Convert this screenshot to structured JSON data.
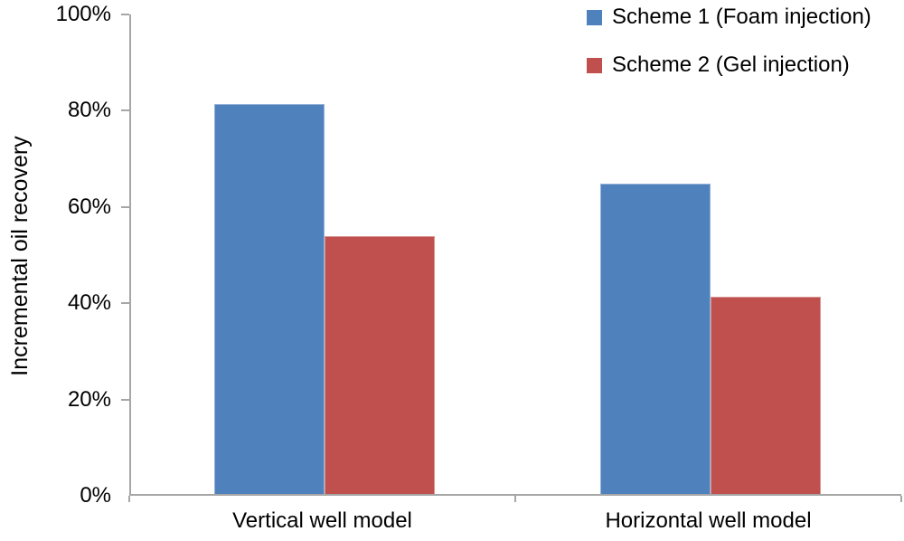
{
  "chart_data": {
    "type": "bar",
    "title": "",
    "xlabel": "",
    "ylabel": "Incremental oil recovery",
    "categories": [
      "Vertical well model",
      "Horizontal well model"
    ],
    "series": [
      {
        "name": "Scheme 1 (Foam injection)",
        "color": "#4f81bd",
        "border_color": "#95b3d7",
        "values": [
          81,
          64.5
        ]
      },
      {
        "name": "Scheme 2 (Gel injection)",
        "color": "#c0504d",
        "border_color": "#d99694",
        "values": [
          53.5,
          41
        ]
      }
    ],
    "ylim": [
      0,
      100
    ],
    "yticks": [
      0,
      20,
      40,
      60,
      80,
      100
    ],
    "ytick_labels": [
      "0%",
      "20%",
      "40%",
      "60%",
      "80%",
      "100%"
    ],
    "ytick_format": "percent",
    "grid": false,
    "legend_position": "top-right",
    "axis_color": "#a6a6a6",
    "text_color": "#000000",
    "background_color": "#ffffff"
  }
}
